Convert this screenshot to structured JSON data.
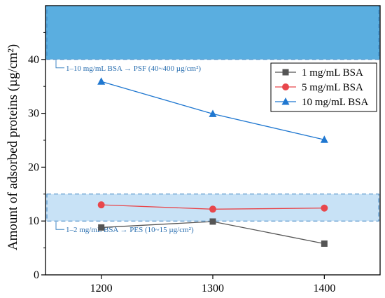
{
  "chart_data": {
    "type": "line",
    "x": [
      1200,
      1300,
      1400
    ],
    "xlim": [
      1150,
      1450
    ],
    "ylim": [
      0,
      50
    ],
    "xticks": [
      "1200",
      "1300",
      "1400"
    ],
    "yticks": [
      "0",
      "10",
      "20",
      "30",
      "40"
    ],
    "xlabel": "",
    "ylabel": "Amount of adsorbed proteins (µg/cm²)",
    "grid": false,
    "legend_position": "top-right",
    "series": [
      {
        "name": "1 mg/mL BSA",
        "values": [
          8.8,
          9.9,
          5.8
        ],
        "color": "#555555",
        "marker": "square"
      },
      {
        "name": "5 mg/mL BSA",
        "values": [
          13.0,
          12.2,
          12.4
        ],
        "color": "#e8474c",
        "marker": "circle"
      },
      {
        "name": "10 mg/mL BSA",
        "values": [
          35.9,
          29.9,
          25.1
        ],
        "color": "#1f77d0",
        "marker": "triangle"
      }
    ],
    "bands": [
      {
        "from": 40,
        "to": 50,
        "color": "#5aaee0",
        "label": "1–10 mg/mL BSA → PSF (40~400 µg/cm²)"
      },
      {
        "from": 10,
        "to": 15,
        "color": "#c8e2f6",
        "label": "1–2 mg/mL BSA → PES (10~15 µg/cm²)"
      }
    ]
  }
}
